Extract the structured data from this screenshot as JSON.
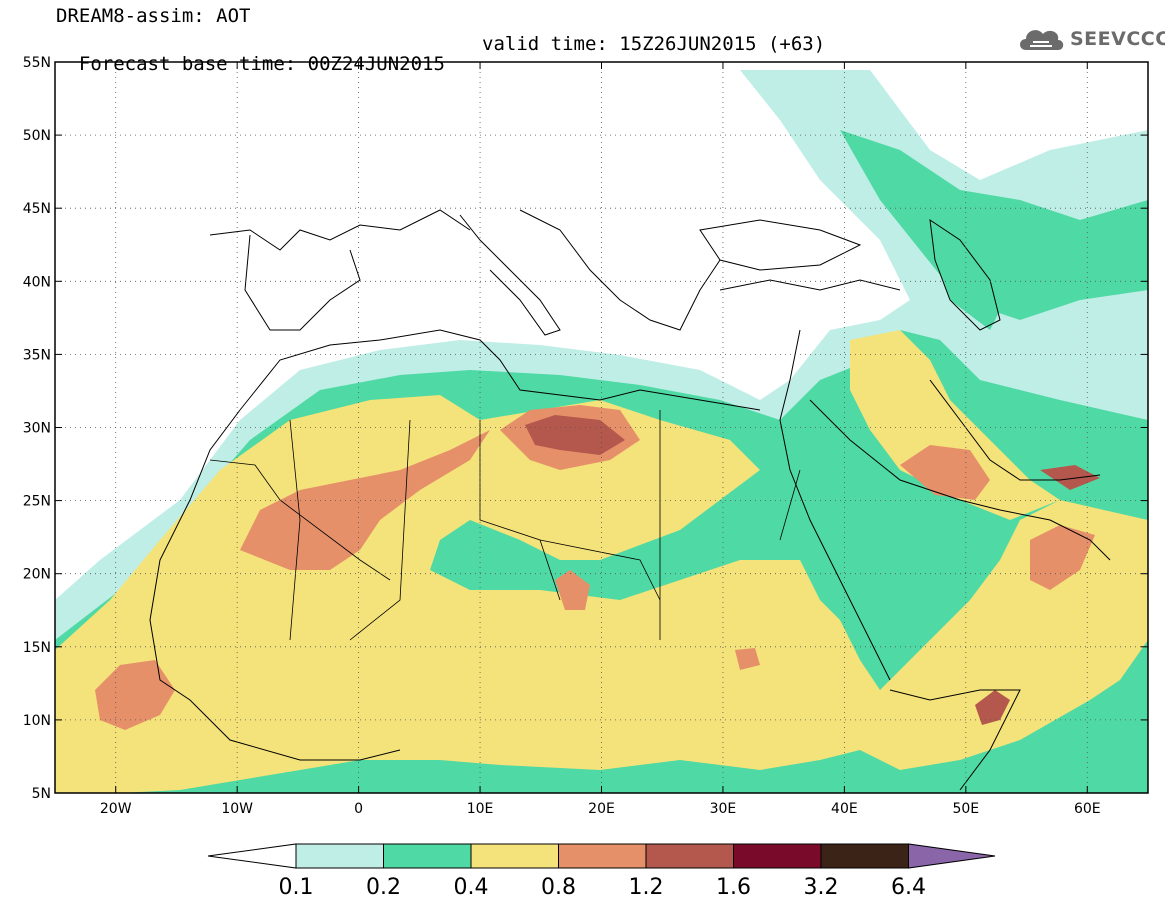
{
  "header": {
    "title": "DREAM8-assim: AOT",
    "base_time": "Forecast base time: 00Z24JUN2015",
    "valid_time": "valid time: 15Z26JUN2015 (+63)"
  },
  "logo": {
    "text": "SEEVCCC",
    "icon": "cloud-logo-icon"
  },
  "map": {
    "lat_labels": [
      "55N",
      "50N",
      "45N",
      "40N",
      "35N",
      "30N",
      "25N",
      "20N",
      "15N",
      "10N",
      "5N"
    ],
    "lon_labels": [
      "20W",
      "10W",
      "0",
      "10E",
      "20E",
      "30E",
      "40E",
      "50E",
      "60E"
    ],
    "lat_range": [
      5,
      55
    ],
    "lon_range": [
      -25,
      65
    ],
    "grid": "dotted"
  },
  "colorbar": {
    "labels": [
      "0.1",
      "0.2",
      "0.4",
      "0.8",
      "1.2",
      "1.6",
      "3.2",
      "6.4"
    ],
    "colors": [
      "#bfeee7",
      "#4fd9a4",
      "#f4e27a",
      "#e6906a",
      "#b4574c",
      "#7a0a2a",
      "#3b2417",
      "#8a66a8"
    ],
    "low_color": "#ffffff"
  }
}
